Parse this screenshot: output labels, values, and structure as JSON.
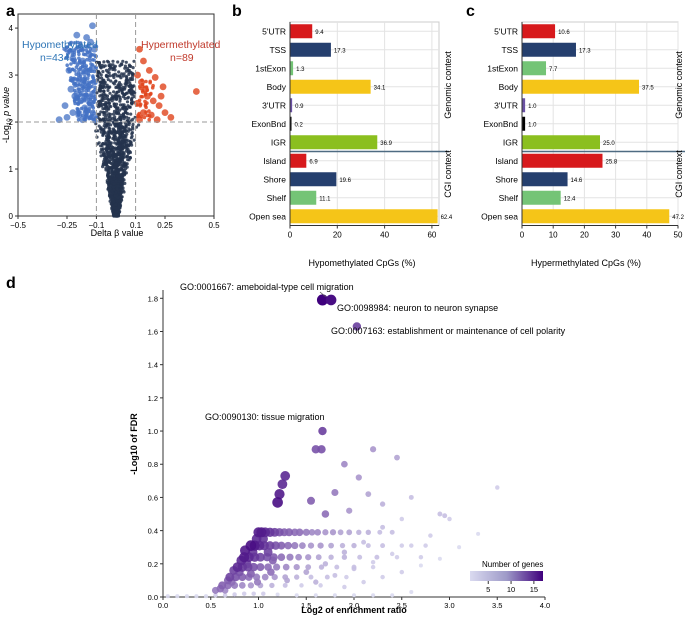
{
  "panels": {
    "a": "a",
    "b": "b",
    "c": "c",
    "d": "d"
  },
  "colors": {
    "hypo": "#4472c4",
    "hypo_label": "#2e75b6",
    "hyper": "#e0441c",
    "hyper_label": "#c0392b",
    "dark_point": "#25344d",
    "threshold": "#999999",
    "grid": "#e3e3e3",
    "separator": "#4f6b82"
  },
  "chart_data": [
    {
      "id": "volcano",
      "type": "scatter",
      "xlabel": "Delta β value",
      "ylabel_prefix": "-Log",
      "ylabel_sub": "10",
      "ylabel_suffix": " p value",
      "xlim": [
        -0.5,
        0.5
      ],
      "ylim": [
        0,
        4.3
      ],
      "xticks": [
        -0.5,
        -0.25,
        -0.1,
        0.1,
        0.25,
        0.5
      ],
      "xtick_labels": [
        "−0.5",
        "−0.25",
        "−0.1",
        "0.1",
        "0.25",
        "0.5"
      ],
      "yticks": [
        0,
        1,
        2,
        3,
        4
      ],
      "thresholds": {
        "delta_beta": [
          -0.1,
          0.1
        ],
        "neg_log10_p": 2
      },
      "annotations": {
        "hypo_title": "Hypomethylated",
        "hypo_count": "n=434",
        "hyper_title": "Hypermethylated",
        "hyper_count": "n=89"
      },
      "highlight_points": {
        "hypo": [
          [
            -0.12,
            4.05
          ],
          [
            -0.2,
            3.85
          ],
          [
            -0.15,
            3.8
          ],
          [
            -0.18,
            3.6
          ],
          [
            -0.13,
            3.7
          ],
          [
            -0.22,
            3.35
          ],
          [
            -0.17,
            3.3
          ],
          [
            -0.14,
            3.45
          ],
          [
            -0.11,
            3.55
          ],
          [
            -0.24,
            3.1
          ],
          [
            -0.19,
            2.9
          ],
          [
            -0.16,
            3.05
          ],
          [
            -0.12,
            3.15
          ],
          [
            -0.23,
            2.7
          ],
          [
            -0.21,
            2.55
          ],
          [
            -0.18,
            2.45
          ],
          [
            -0.14,
            2.75
          ],
          [
            -0.11,
            2.85
          ],
          [
            -0.26,
            2.35
          ],
          [
            -0.22,
            2.2
          ],
          [
            -0.19,
            2.15
          ],
          [
            -0.16,
            2.3
          ],
          [
            -0.13,
            2.4
          ],
          [
            -0.11,
            2.1
          ],
          [
            -0.29,
            2.05
          ],
          [
            -0.25,
            2.1
          ],
          [
            -0.2,
            2.6
          ],
          [
            -0.15,
            2.55
          ],
          [
            -0.12,
            2.6
          ],
          [
            -0.17,
            2.05
          ]
        ],
        "hyper": [
          [
            0.41,
            2.65
          ],
          [
            0.24,
            2.75
          ],
          [
            0.2,
            2.95
          ],
          [
            0.17,
            3.1
          ],
          [
            0.14,
            3.3
          ],
          [
            0.12,
            3.55
          ],
          [
            0.13,
            2.85
          ],
          [
            0.16,
            2.55
          ],
          [
            0.19,
            2.45
          ],
          [
            0.22,
            2.35
          ],
          [
            0.25,
            2.2
          ],
          [
            0.28,
            2.1
          ],
          [
            0.11,
            2.4
          ],
          [
            0.14,
            2.2
          ],
          [
            0.18,
            2.15
          ],
          [
            0.21,
            2.05
          ],
          [
            0.12,
            2.05
          ],
          [
            0.15,
            2.7
          ],
          [
            0.11,
            3.0
          ],
          [
            0.23,
            2.55
          ]
        ]
      }
    },
    {
      "id": "hypo_bars",
      "type": "bar",
      "orientation": "horizontal",
      "xlabel": "Hypomethylated CpGs (%)",
      "xlim": [
        0,
        63
      ],
      "xticks": [
        0,
        20,
        40,
        60
      ],
      "categories": [
        "5'UTR",
        "TSS",
        "1stExon",
        "Body",
        "3'UTR",
        "ExonBnd",
        "IGR",
        "Island",
        "Shore",
        "Shelf",
        "Open sea"
      ],
      "values": [
        9.4,
        17.3,
        1.3,
        34.1,
        0.9,
        0.2,
        36.9,
        6.9,
        19.6,
        11.1,
        62.4
      ],
      "value_labels": [
        "9.4",
        "17.3",
        "1.3",
        "34.1",
        "0.9",
        "0.2",
        "36.9",
        "6.9",
        "19.6",
        "11.1",
        "62.4"
      ],
      "bar_colors": [
        "#d7191c",
        "#253f6e",
        "#74c476",
        "#f5c518",
        "#6a51a3",
        "#000000",
        "#8bbf1f",
        "#d7191c",
        "#253f6e",
        "#74c476",
        "#f5c518"
      ],
      "groups": [
        "Genomic context",
        "CGI context"
      ]
    },
    {
      "id": "hyper_bars",
      "type": "bar",
      "orientation": "horizontal",
      "xlabel": "Hypermethylated CpGs (%)",
      "xlim": [
        0,
        50
      ],
      "xticks": [
        0,
        10,
        20,
        30,
        40,
        50
      ],
      "categories": [
        "5'UTR",
        "TSS",
        "1stExon",
        "Body",
        "3'UTR",
        "ExonBnd",
        "IGR",
        "Island",
        "Shore",
        "Shelf",
        "Open sea"
      ],
      "values": [
        10.6,
        17.3,
        7.7,
        37.5,
        1.0,
        1.0,
        25.0,
        25.8,
        14.6,
        12.4,
        47.2
      ],
      "value_labels": [
        "10.6",
        "17.3",
        "7.7",
        "37.5",
        "1.0",
        "1.0",
        "25.0",
        "25.8",
        "14.6",
        "12.4",
        "47.2"
      ],
      "bar_colors": [
        "#d7191c",
        "#253f6e",
        "#74c476",
        "#f5c518",
        "#6a51a3",
        "#000000",
        "#8bbf1f",
        "#d7191c",
        "#253f6e",
        "#74c476",
        "#f5c518"
      ],
      "groups": [
        "Genomic context",
        "CGI context"
      ]
    },
    {
      "id": "enrichment",
      "type": "scatter",
      "xlabel": "Log2 of enrichment ratio",
      "ylabel": "-Log10 of FDR",
      "xlim": [
        0,
        4.0
      ],
      "ylim": [
        0,
        1.85
      ],
      "xticks": [
        0,
        0.5,
        1.0,
        1.5,
        2.0,
        2.5,
        3.0,
        3.5,
        4.0
      ],
      "xtick_labels": [
        "0.0",
        "0.5",
        "1.0",
        "1.5",
        "2.0",
        "2.5",
        "3.0",
        "3.5",
        "4.0"
      ],
      "yticks": [
        0,
        0.2,
        0.4,
        0.6,
        0.8,
        1.0,
        1.2,
        1.4,
        1.6,
        1.8
      ],
      "ytick_labels": [
        "0.0",
        "0.2",
        "0.4",
        "0.6",
        "0.8",
        "1.0",
        "1.2",
        "1.4",
        "1.6",
        "1.8"
      ],
      "labeled_points": [
        {
          "label": "GO:0001667: ameboidal-type cell migration",
          "x": 1.67,
          "y": 1.79,
          "genes": 17
        },
        {
          "label": "GO:0098984: neuron to neuron synapse",
          "x": 1.76,
          "y": 1.79,
          "genes": 16
        },
        {
          "label": "GO:0007163: establishment or maintenance of cell polarity",
          "x": 2.03,
          "y": 1.63,
          "genes": 11
        },
        {
          "label": "GO:0090130: tissue migration",
          "x": 1.67,
          "y": 1.0,
          "genes": 11
        }
      ],
      "points": [
        [
          1.6,
          0.89,
          11
        ],
        [
          1.66,
          0.89,
          11
        ],
        [
          1.28,
          0.73,
          14
        ],
        [
          1.25,
          0.68,
          14
        ],
        [
          1.22,
          0.62,
          15
        ],
        [
          1.2,
          0.57,
          16
        ],
        [
          2.2,
          0.89,
          6
        ],
        [
          2.45,
          0.84,
          5
        ],
        [
          1.9,
          0.8,
          7
        ],
        [
          2.05,
          0.72,
          6
        ],
        [
          1.8,
          0.63,
          8
        ],
        [
          2.15,
          0.62,
          5
        ],
        [
          2.3,
          0.56,
          4
        ],
        [
          1.55,
          0.58,
          10
        ],
        [
          1.7,
          0.5,
          9
        ],
        [
          1.95,
          0.52,
          6
        ],
        [
          2.6,
          0.6,
          3
        ],
        [
          3.5,
          0.66,
          2
        ],
        [
          2.9,
          0.5,
          3
        ],
        [
          2.95,
          0.49,
          3
        ],
        [
          1.0,
          0.39,
          15
        ],
        [
          1.03,
          0.39,
          15
        ],
        [
          1.07,
          0.39,
          14
        ],
        [
          1.12,
          0.39,
          13
        ],
        [
          1.17,
          0.39,
          12
        ],
        [
          1.22,
          0.39,
          11
        ],
        [
          1.27,
          0.39,
          10
        ],
        [
          1.32,
          0.39,
          10
        ],
        [
          1.38,
          0.39,
          9
        ],
        [
          1.43,
          0.39,
          9
        ],
        [
          1.5,
          0.39,
          8
        ],
        [
          1.56,
          0.39,
          7
        ],
        [
          1.62,
          0.39,
          7
        ],
        [
          1.7,
          0.39,
          6
        ],
        [
          1.78,
          0.39,
          6
        ],
        [
          1.86,
          0.39,
          5
        ],
        [
          1.95,
          0.39,
          5
        ],
        [
          2.05,
          0.39,
          4
        ],
        [
          2.15,
          0.39,
          4
        ],
        [
          2.27,
          0.39,
          3
        ],
        [
          2.4,
          0.39,
          3
        ],
        [
          0.92,
          0.31,
          16
        ],
        [
          0.96,
          0.31,
          15
        ],
        [
          1.01,
          0.31,
          14
        ],
        [
          1.06,
          0.31,
          13
        ],
        [
          1.12,
          0.31,
          12
        ],
        [
          1.18,
          0.31,
          11
        ],
        [
          1.24,
          0.31,
          10
        ],
        [
          1.31,
          0.31,
          9
        ],
        [
          1.38,
          0.31,
          8
        ],
        [
          1.46,
          0.31,
          7
        ],
        [
          1.55,
          0.31,
          6
        ],
        [
          1.65,
          0.31,
          6
        ],
        [
          1.76,
          0.31,
          5
        ],
        [
          1.88,
          0.31,
          4
        ],
        [
          2.0,
          0.31,
          4
        ],
        [
          2.15,
          0.31,
          3
        ],
        [
          2.3,
          0.31,
          3
        ],
        [
          2.5,
          0.31,
          2
        ],
        [
          2.75,
          0.31,
          2
        ],
        [
          0.85,
          0.24,
          15
        ],
        [
          0.9,
          0.24,
          14
        ],
        [
          0.96,
          0.24,
          13
        ],
        [
          1.02,
          0.24,
          12
        ],
        [
          1.09,
          0.24,
          11
        ],
        [
          1.16,
          0.24,
          10
        ],
        [
          1.24,
          0.24,
          9
        ],
        [
          1.33,
          0.24,
          8
        ],
        [
          1.42,
          0.24,
          7
        ],
        [
          1.52,
          0.24,
          6
        ],
        [
          1.63,
          0.24,
          5
        ],
        [
          1.76,
          0.24,
          4
        ],
        [
          1.9,
          0.24,
          4
        ],
        [
          2.06,
          0.24,
          3
        ],
        [
          2.24,
          0.24,
          3
        ],
        [
          2.45,
          0.24,
          2
        ],
        [
          2.7,
          0.24,
          2
        ],
        [
          0.78,
          0.18,
          14
        ],
        [
          0.83,
          0.18,
          13
        ],
        [
          0.89,
          0.18,
          12
        ],
        [
          0.95,
          0.18,
          11
        ],
        [
          1.02,
          0.18,
          10
        ],
        [
          1.1,
          0.18,
          9
        ],
        [
          1.19,
          0.18,
          8
        ],
        [
          1.29,
          0.18,
          7
        ],
        [
          1.4,
          0.18,
          6
        ],
        [
          1.52,
          0.18,
          5
        ],
        [
          1.66,
          0.18,
          4
        ],
        [
          1.82,
          0.18,
          3
        ],
        [
          2.0,
          0.18,
          3
        ],
        [
          2.2,
          0.18,
          2
        ],
        [
          0.7,
          0.12,
          12
        ],
        [
          0.76,
          0.12,
          11
        ],
        [
          0.83,
          0.12,
          10
        ],
        [
          0.9,
          0.12,
          9
        ],
        [
          0.98,
          0.12,
          8
        ],
        [
          1.07,
          0.12,
          7
        ],
        [
          1.17,
          0.12,
          6
        ],
        [
          1.28,
          0.12,
          5
        ],
        [
          1.4,
          0.12,
          4
        ],
        [
          1.55,
          0.12,
          3
        ],
        [
          1.72,
          0.12,
          3
        ],
        [
          1.92,
          0.12,
          2
        ],
        [
          0.62,
          0.07,
          10
        ],
        [
          0.68,
          0.07,
          9
        ],
        [
          0.75,
          0.07,
          8
        ],
        [
          0.83,
          0.07,
          7
        ],
        [
          0.92,
          0.07,
          6
        ],
        [
          1.02,
          0.07,
          5
        ],
        [
          1.14,
          0.07,
          4
        ],
        [
          1.28,
          0.07,
          3
        ],
        [
          1.45,
          0.07,
          2
        ],
        [
          1.65,
          0.07,
          2
        ],
        [
          0.05,
          0.005,
          1
        ],
        [
          0.15,
          0.005,
          1
        ],
        [
          0.25,
          0.005,
          1
        ],
        [
          0.35,
          0.005,
          1
        ],
        [
          0.45,
          0.005,
          1
        ],
        [
          0.55,
          0.01,
          2
        ],
        [
          0.65,
          0.01,
          2
        ],
        [
          0.75,
          0.015,
          2
        ],
        [
          0.85,
          0.02,
          2
        ],
        [
          0.95,
          0.02,
          2
        ],
        [
          1.05,
          0.02,
          2
        ],
        [
          1.2,
          0.015,
          1
        ],
        [
          1.4,
          0.01,
          1
        ],
        [
          1.6,
          0.01,
          1
        ],
        [
          1.8,
          0.01,
          1
        ],
        [
          2.0,
          0.01,
          1
        ],
        [
          2.2,
          0.01,
          1
        ],
        [
          2.4,
          0.01,
          1
        ],
        [
          2.6,
          0.03,
          1
        ],
        [
          0.55,
          0.04,
          8
        ],
        [
          0.6,
          0.05,
          9
        ],
        [
          0.65,
          0.04,
          7
        ],
        [
          0.72,
          0.09,
          9
        ],
        [
          0.8,
          0.15,
          11
        ],
        [
          0.88,
          0.2,
          12
        ],
        [
          0.94,
          0.27,
          13
        ],
        [
          0.98,
          0.35,
          14
        ],
        [
          0.86,
          0.28,
          15
        ],
        [
          0.82,
          0.22,
          14
        ],
        [
          0.74,
          0.16,
          12
        ],
        [
          0.68,
          0.1,
          10
        ],
        [
          1.1,
          0.27,
          12
        ],
        [
          1.15,
          0.22,
          10
        ],
        [
          1.05,
          0.35,
          13
        ],
        [
          0.92,
          0.14,
          10
        ],
        [
          0.99,
          0.09,
          8
        ],
        [
          1.13,
          0.15,
          9
        ],
        [
          1.3,
          0.1,
          5
        ],
        [
          1.5,
          0.15,
          5
        ],
        [
          1.7,
          0.2,
          4
        ],
        [
          1.9,
          0.27,
          4
        ],
        [
          2.1,
          0.33,
          3
        ],
        [
          2.3,
          0.42,
          3
        ],
        [
          2.5,
          0.47,
          2
        ],
        [
          1.6,
          0.09,
          4
        ],
        [
          1.8,
          0.13,
          3
        ],
        [
          2.0,
          0.17,
          3
        ],
        [
          2.2,
          0.21,
          2
        ],
        [
          2.4,
          0.26,
          2
        ],
        [
          2.6,
          0.31,
          2
        ],
        [
          2.8,
          0.37,
          2
        ],
        [
          3.0,
          0.47,
          2
        ],
        [
          1.9,
          0.06,
          2
        ],
        [
          2.1,
          0.09,
          2
        ],
        [
          2.3,
          0.12,
          2
        ],
        [
          2.5,
          0.15,
          2
        ],
        [
          2.7,
          0.19,
          1
        ],
        [
          2.9,
          0.23,
          1
        ],
        [
          3.1,
          0.3,
          1
        ],
        [
          3.3,
          0.38,
          1
        ]
      ],
      "legend": {
        "title": "Number of genes",
        "ticks": [
          5,
          10,
          15
        ],
        "min": 1,
        "max": 17
      }
    }
  ]
}
